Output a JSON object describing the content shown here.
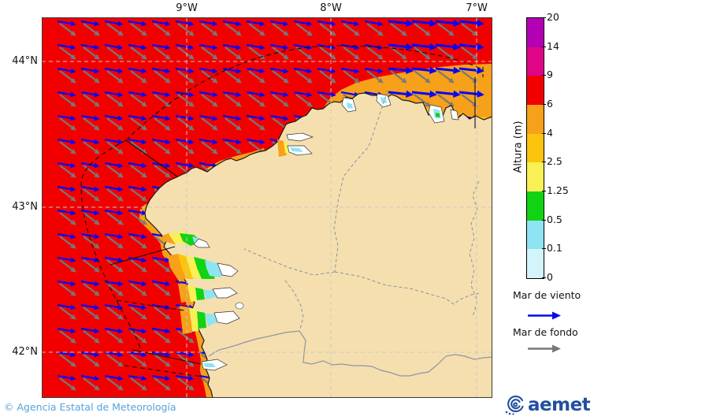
{
  "map": {
    "x_axis_ticks": [
      "9°W",
      "8°W",
      "7°W"
    ],
    "y_axis_ticks": [
      "44°N",
      "43°N",
      "42°N"
    ],
    "sea_color": "#F20000",
    "land_color": "#F5DFAE"
  },
  "colorbar": {
    "title": "Altura (m)",
    "tick_labels": [
      "20",
      "14",
      "9",
      "6",
      "4",
      "2.5",
      "1.25",
      "0.5",
      "0.1",
      "0"
    ],
    "segment_colors_top_to_bottom": [
      "#B400B4",
      "#E00487",
      "#F20000",
      "#F7A019",
      "#FCC40D",
      "#F8F054",
      "#12D312",
      "#8EE4F2",
      "#D4F4FB"
    ]
  },
  "legend": {
    "wind_sea_label": "Mar de viento",
    "wind_sea_arrow_color": "#0806F5",
    "swell_label": "Mar de fondo",
    "swell_arrow_color": "#787878"
  },
  "footer": {
    "copyright": "© Agencia Estatal de Meteorología",
    "copyright_color": "#55A2DD",
    "logo_text": "aemet",
    "logo_color": "#234F9F"
  }
}
